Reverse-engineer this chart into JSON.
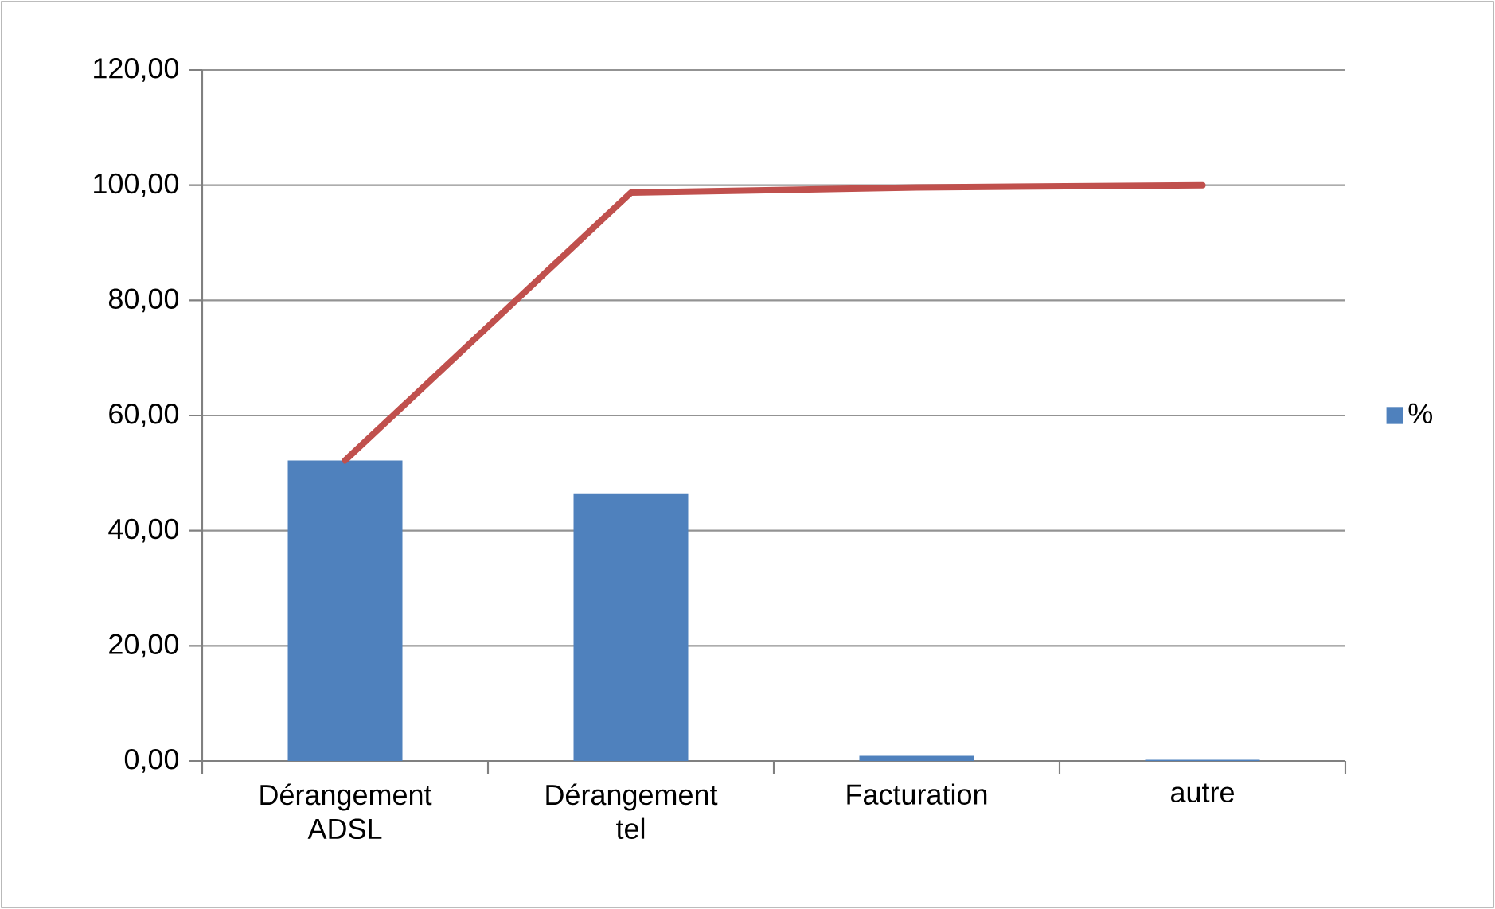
{
  "chart_data": {
    "type": "bar",
    "categories": [
      "Dérangement ADSL",
      "Dérangement tel",
      "Facturation",
      "autre"
    ],
    "series": [
      {
        "name": "%",
        "color": "#4f81bd",
        "values": [
          52.2,
          46.5,
          0.9,
          0.2
        ]
      },
      {
        "type": "line",
        "color": "#c0504d",
        "values": [
          52.2,
          98.7,
          99.6,
          100
        ]
      }
    ],
    "ylim": [
      0,
      120
    ],
    "yticks": [
      {
        "value": 0,
        "label": "0,00"
      },
      {
        "value": 20,
        "label": "20,00"
      },
      {
        "value": 40,
        "label": "40,00"
      },
      {
        "value": 60,
        "label": "60,00"
      },
      {
        "value": 80,
        "label": "80,00"
      },
      {
        "value": 100,
        "label": "100,00"
      },
      {
        "value": 120,
        "label": "120,00"
      }
    ],
    "grid": "y",
    "legend": "right",
    "marker": "none",
    "line_style": "solid"
  }
}
